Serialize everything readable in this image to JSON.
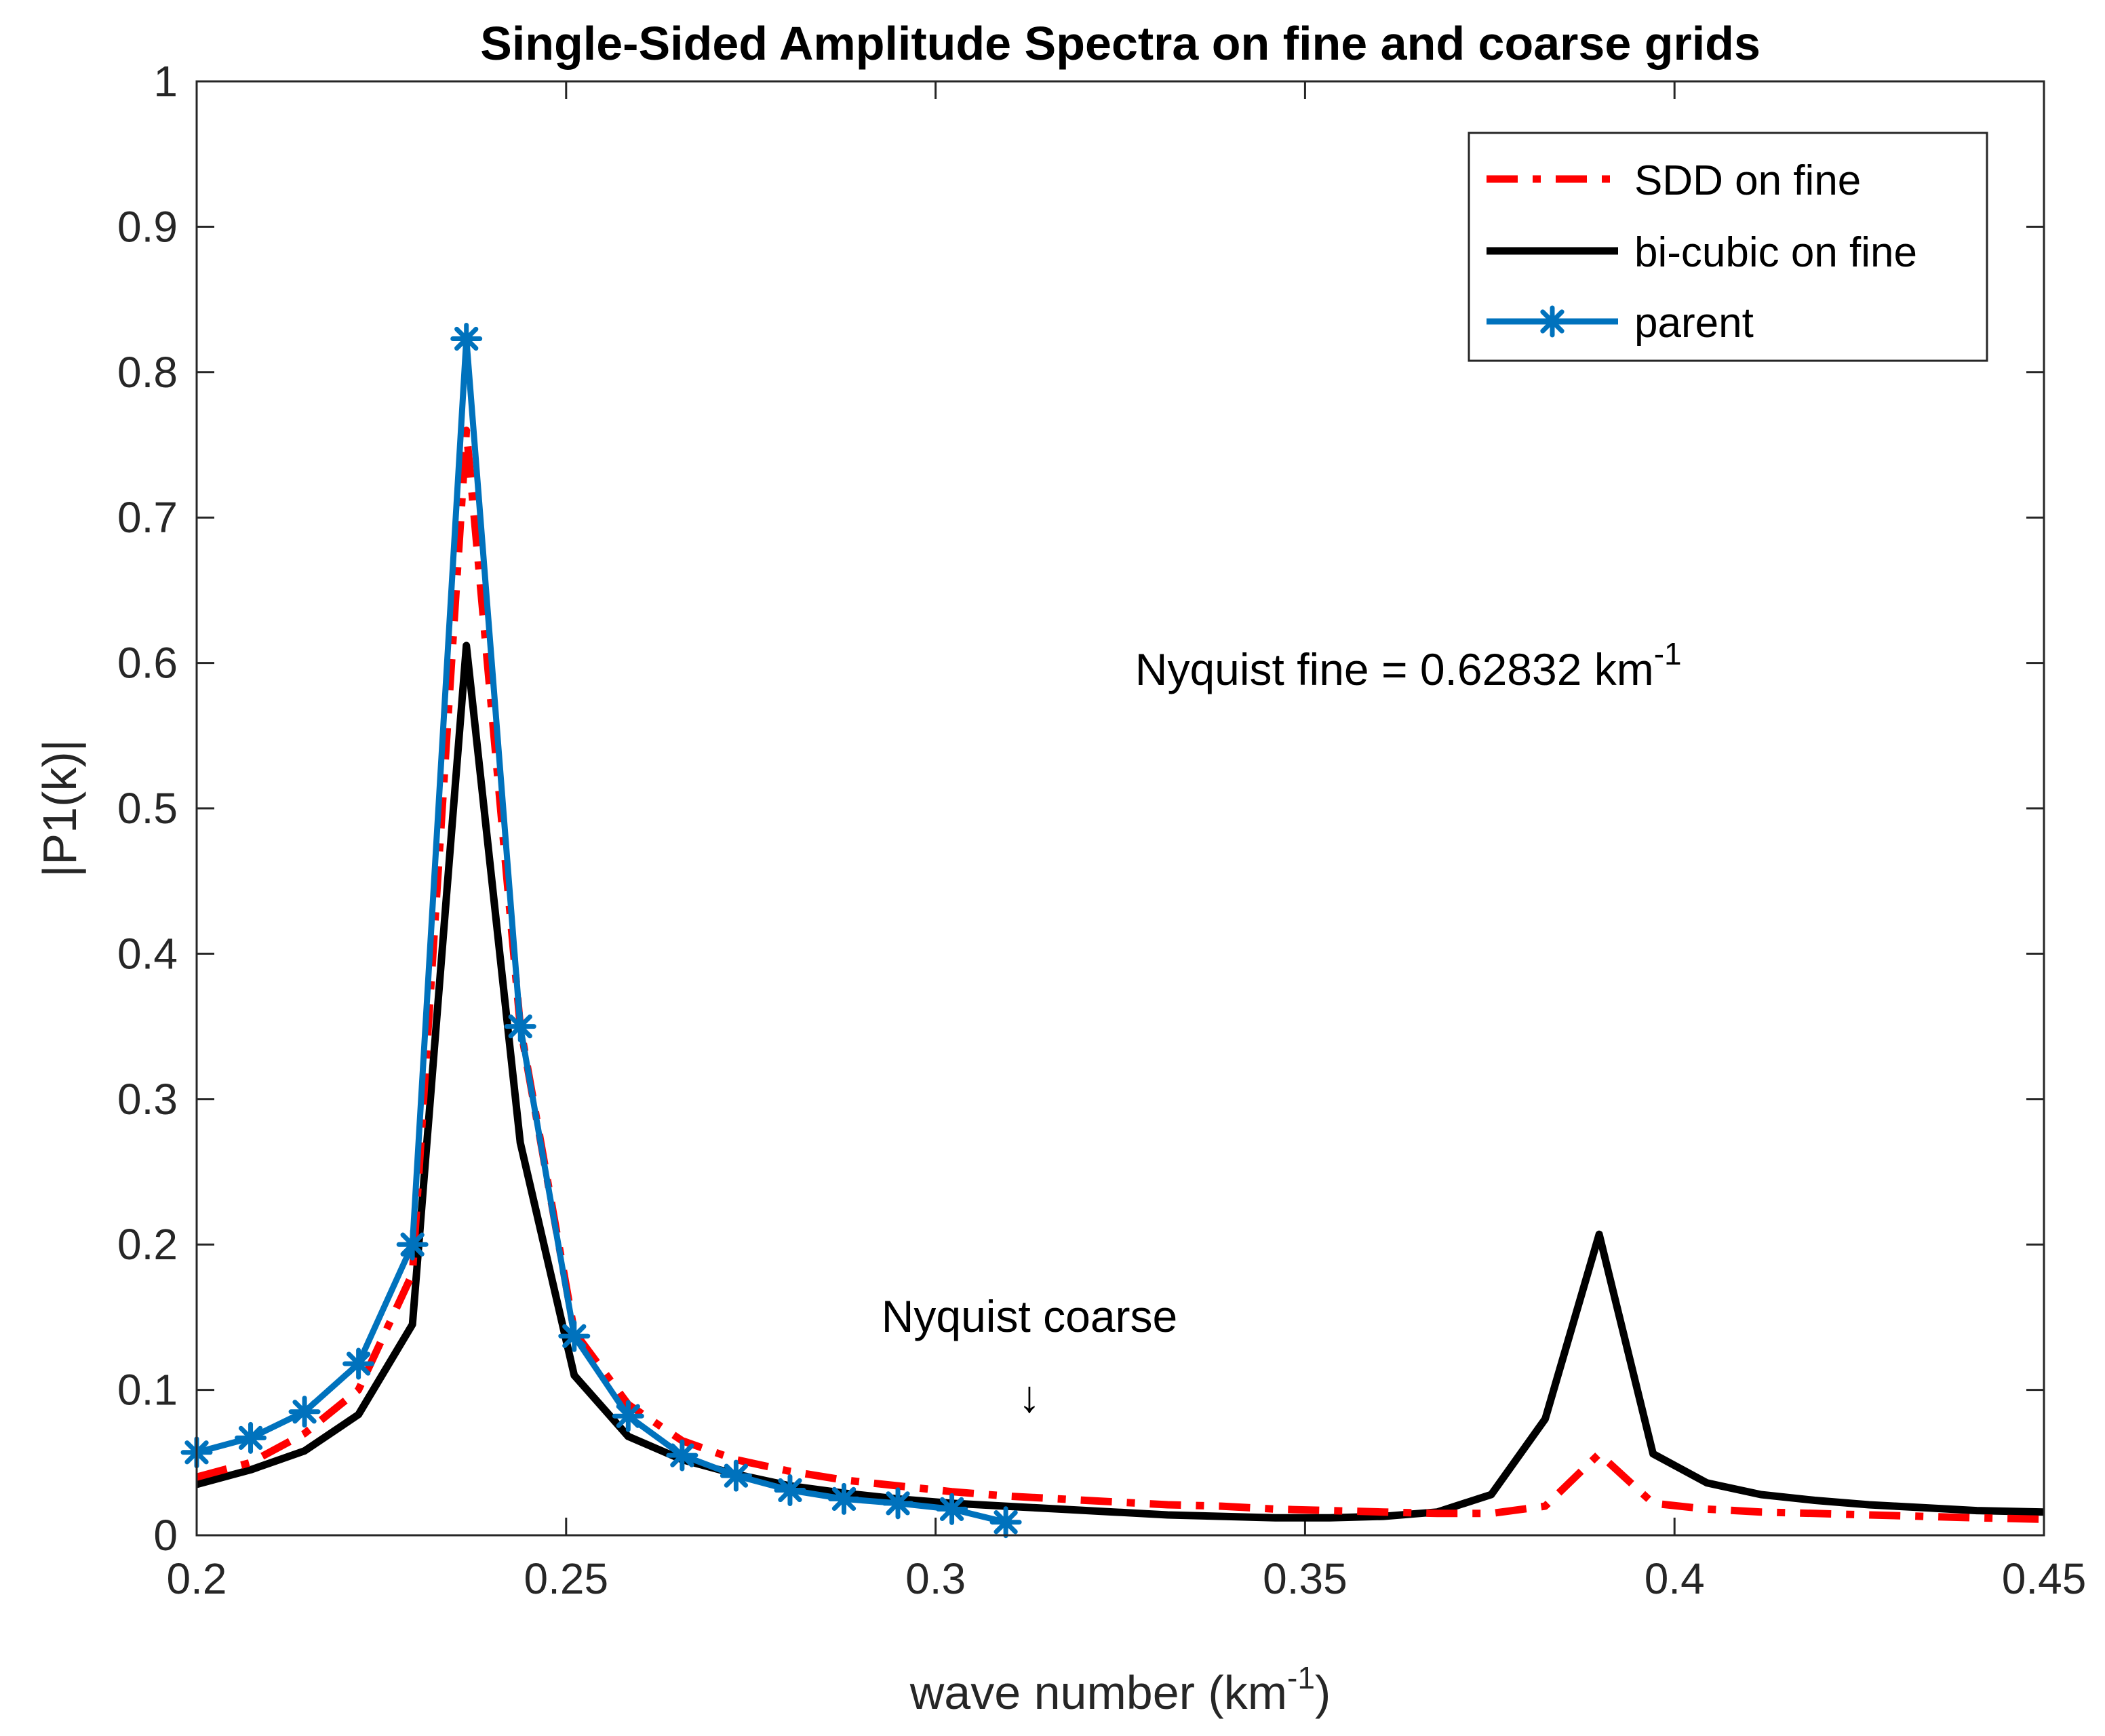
{
  "chart_data": {
    "type": "line",
    "title": "Single-Sided Amplitude Spectra on fine and coarse grids",
    "xlabel": "wave number (km",
    "xlabel_sup": "-1",
    "xlabel_end": ")",
    "ylabel": "|P1(k)|",
    "xlim": [
      0.2,
      0.45
    ],
    "ylim": [
      0,
      1
    ],
    "xticks": [
      0.2,
      0.25,
      0.3,
      0.35,
      0.4,
      0.45
    ],
    "xtick_labels": [
      "0.2",
      "0.25",
      "0.3",
      "0.35",
      "0.4",
      "0.45"
    ],
    "yticks": [
      0,
      0.1,
      0.2,
      0.3,
      0.4,
      0.5,
      0.6,
      0.7,
      0.8,
      0.9,
      1
    ],
    "ytick_labels": [
      "0",
      "0.1",
      "0.2",
      "0.3",
      "0.4",
      "0.5",
      "0.6",
      "0.7",
      "0.8",
      "0.9",
      "1"
    ],
    "legend_position": "top-right",
    "series": [
      {
        "name": "SDD on fine",
        "color": "#ff0000",
        "style": "dashdot",
        "x": [
          0.2,
          0.2073,
          0.2146,
          0.2219,
          0.2292,
          0.2365,
          0.2438,
          0.2511,
          0.2584,
          0.2657,
          0.273,
          0.2803,
          0.2876,
          0.2949,
          0.3022,
          0.3095,
          0.3168,
          0.3241,
          0.3314,
          0.3387,
          0.346,
          0.3533,
          0.3606,
          0.3679,
          0.3752,
          0.3825,
          0.3898,
          0.3971,
          0.4044,
          0.4117,
          0.419,
          0.4263,
          0.4336,
          0.4409,
          0.45
        ],
        "y": [
          0.04,
          0.05,
          0.07,
          0.1,
          0.18,
          0.76,
          0.35,
          0.14,
          0.09,
          0.065,
          0.052,
          0.044,
          0.038,
          0.034,
          0.03,
          0.027,
          0.025,
          0.023,
          0.021,
          0.02,
          0.018,
          0.017,
          0.016,
          0.015,
          0.015,
          0.02,
          0.056,
          0.022,
          0.018,
          0.016,
          0.015,
          0.014,
          0.013,
          0.012,
          0.011
        ]
      },
      {
        "name": "bi-cubic on fine",
        "color": "#000000",
        "style": "solid",
        "x": [
          0.2,
          0.2073,
          0.2146,
          0.2219,
          0.2292,
          0.2365,
          0.2438,
          0.2511,
          0.2584,
          0.2657,
          0.273,
          0.2803,
          0.2876,
          0.2949,
          0.3022,
          0.3095,
          0.3168,
          0.3241,
          0.3314,
          0.3387,
          0.346,
          0.3533,
          0.3606,
          0.3679,
          0.3752,
          0.3825,
          0.3898,
          0.3971,
          0.4044,
          0.4117,
          0.419,
          0.4263,
          0.4336,
          0.4409,
          0.45
        ],
        "y": [
          0.035,
          0.045,
          0.058,
          0.083,
          0.145,
          0.612,
          0.27,
          0.11,
          0.068,
          0.052,
          0.042,
          0.034,
          0.029,
          0.025,
          0.022,
          0.02,
          0.018,
          0.016,
          0.014,
          0.013,
          0.012,
          0.012,
          0.013,
          0.016,
          0.028,
          0.08,
          0.207,
          0.056,
          0.036,
          0.028,
          0.024,
          0.021,
          0.019,
          0.017,
          0.016
        ]
      },
      {
        "name": "parent",
        "color": "#0072bd",
        "style": "solid",
        "marker": "asterisk",
        "x": [
          0.2,
          0.2073,
          0.2146,
          0.2219,
          0.2292,
          0.2365,
          0.2438,
          0.2511,
          0.2584,
          0.2657,
          0.273,
          0.2803,
          0.2876,
          0.2949,
          0.3022,
          0.3095
        ],
        "y": [
          0.057,
          0.067,
          0.085,
          0.118,
          0.2,
          0.823,
          0.35,
          0.137,
          0.082,
          0.055,
          0.041,
          0.031,
          0.025,
          0.022,
          0.018,
          0.009
        ]
      }
    ],
    "annotations": [
      {
        "text": "Nyquist fine = 0.62832 km",
        "sup": "-1",
        "x": 0.327,
        "y": 0.585
      },
      {
        "text": "Nyquist coarse",
        "x": 0.3127,
        "y": 0.14
      },
      {
        "text": "↓",
        "x": 0.3127,
        "y": 0.085
      }
    ]
  }
}
